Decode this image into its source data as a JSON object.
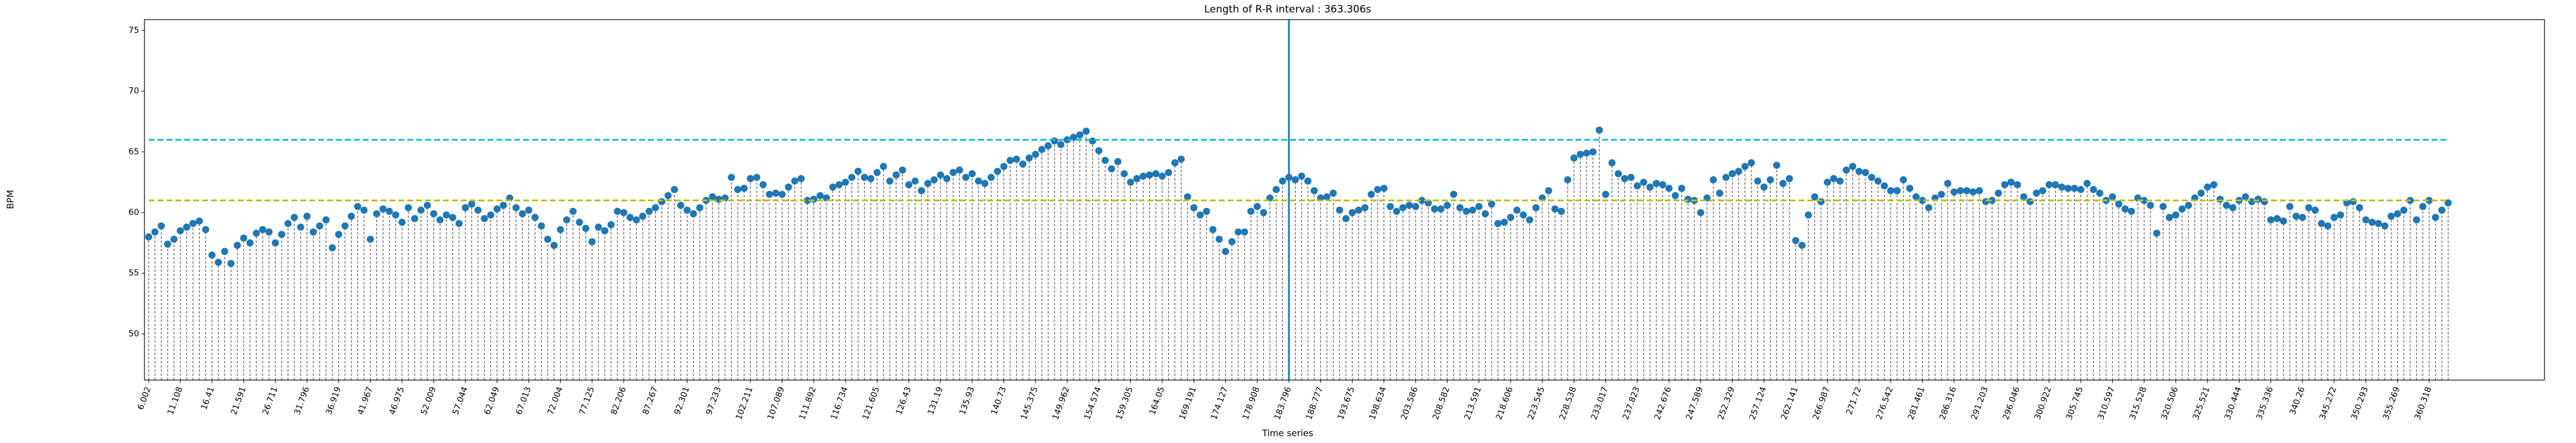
{
  "chart_data": {
    "type": "stem",
    "title": "Length of R-R interval : 363.306s",
    "xlabel": "Time series",
    "ylabel": "BPM",
    "categories": [
      "6.002",
      null,
      null,
      null,
      null,
      "11.108",
      null,
      null,
      null,
      null,
      "16.41",
      null,
      null,
      null,
      null,
      "21.591",
      null,
      null,
      null,
      null,
      "26.711",
      null,
      null,
      null,
      null,
      "31.796",
      null,
      null,
      null,
      null,
      "36.919",
      null,
      null,
      null,
      null,
      "41.967",
      null,
      null,
      null,
      null,
      "46.975",
      null,
      null,
      null,
      null,
      "52.009",
      null,
      null,
      null,
      null,
      "57.044",
      null,
      null,
      null,
      null,
      "62.049",
      null,
      null,
      null,
      null,
      "67.013",
      null,
      null,
      null,
      null,
      "72.004",
      null,
      null,
      null,
      null,
      "77.125",
      null,
      null,
      null,
      null,
      "82.206",
      null,
      null,
      null,
      null,
      "87.267",
      null,
      null,
      null,
      null,
      "92.301",
      null,
      null,
      null,
      null,
      "97.233",
      null,
      null,
      null,
      null,
      "102.211",
      null,
      null,
      null,
      null,
      "107.089",
      null,
      null,
      null,
      null,
      "111.892",
      null,
      null,
      null,
      null,
      "116.734",
      null,
      null,
      null,
      null,
      "121.605",
      null,
      null,
      null,
      null,
      "126.43",
      null,
      null,
      null,
      null,
      "131.19",
      null,
      null,
      null,
      null,
      "135.93",
      null,
      null,
      null,
      null,
      "140.73",
      null,
      null,
      null,
      null,
      "145.375",
      null,
      null,
      null,
      null,
      "149.962",
      null,
      null,
      null,
      null,
      "154.574",
      null,
      null,
      null,
      null,
      "159.305",
      null,
      null,
      null,
      null,
      "164.05",
      null,
      null,
      null,
      null,
      "169.191",
      null,
      null,
      null,
      null,
      "174.127",
      null,
      null,
      null,
      null,
      "178.908",
      null,
      null,
      null,
      null,
      "183.796",
      null,
      null,
      null,
      null,
      "188.777",
      null,
      null,
      null,
      null,
      "193.675",
      null,
      null,
      null,
      null,
      "198.634",
      null,
      null,
      null,
      null,
      "203.586",
      null,
      null,
      null,
      null,
      "208.582",
      null,
      null,
      null,
      null,
      "213.591",
      null,
      null,
      null,
      null,
      "218.606",
      null,
      null,
      null,
      null,
      "223.545",
      null,
      null,
      null,
      null,
      "228.538",
      null,
      null,
      null,
      null,
      "233.017",
      null,
      null,
      null,
      null,
      "237.823",
      null,
      null,
      null,
      null,
      "242.676",
      null,
      null,
      null,
      null,
      "247.589",
      null,
      null,
      null,
      null,
      "252.329",
      null,
      null,
      null,
      null,
      "257.124",
      null,
      null,
      null,
      null,
      "262.141",
      null,
      null,
      null,
      null,
      "266.987",
      null,
      null,
      null,
      null,
      "271.72",
      null,
      null,
      null,
      null,
      "276.542",
      null,
      null,
      null,
      null,
      "281.461",
      null,
      null,
      null,
      null,
      "286.316",
      null,
      null,
      null,
      null,
      "291.203",
      null,
      null,
      null,
      null,
      "296.046",
      null,
      null,
      null,
      null,
      "300.922",
      null,
      null,
      null,
      null,
      "305.745",
      null,
      null,
      null,
      null,
      "310.597",
      null,
      null,
      null,
      null,
      "315.528",
      null,
      null,
      null,
      null,
      "320.506",
      null,
      null,
      null,
      null,
      "325.521",
      null,
      null,
      null,
      null,
      "330.444",
      null,
      null,
      null,
      null,
      "335.336",
      null,
      null,
      null,
      null,
      "340.26",
      null,
      null,
      null,
      null,
      "345.272",
      null,
      null,
      null,
      null,
      "350.293",
      null,
      null,
      null,
      null,
      "355.269",
      null,
      null,
      null,
      null,
      "360.318",
      null,
      null,
      null
    ],
    "values": [
      58.0,
      58.4,
      58.9,
      57.4,
      57.8,
      58.5,
      58.8,
      59.1,
      59.3,
      58.6,
      56.5,
      55.9,
      56.8,
      55.8,
      57.3,
      57.9,
      57.5,
      58.3,
      58.6,
      58.4,
      57.5,
      58.2,
      59.1,
      59.6,
      58.8,
      59.7,
      58.4,
      58.9,
      59.4,
      57.1,
      58.2,
      58.9,
      59.7,
      60.5,
      60.2,
      57.8,
      59.9,
      60.3,
      60.1,
      59.8,
      59.2,
      60.4,
      59.5,
      60.2,
      60.6,
      59.9,
      59.4,
      59.8,
      59.6,
      59.1,
      60.4,
      60.7,
      60.2,
      59.5,
      59.8,
      60.3,
      60.6,
      61.2,
      60.4,
      59.9,
      60.2,
      59.6,
      58.9,
      57.8,
      57.3,
      58.6,
      59.4,
      60.1,
      59.2,
      58.7,
      57.6,
      58.8,
      58.5,
      59.0,
      60.1,
      60.0,
      59.6,
      59.4,
      59.7,
      60.1,
      60.4,
      60.9,
      61.4,
      61.9,
      60.6,
      60.2,
      59.9,
      60.4,
      61.0,
      61.3,
      61.1,
      61.2,
      62.9,
      61.9,
      62.0,
      62.8,
      62.9,
      62.3,
      61.5,
      61.6,
      61.5,
      62.1,
      62.6,
      62.8,
      61.0,
      61.1,
      61.4,
      61.2,
      62.1,
      62.3,
      62.5,
      62.9,
      63.4,
      62.9,
      62.8,
      63.3,
      63.8,
      62.6,
      63.1,
      63.5,
      62.3,
      62.6,
      61.8,
      62.4,
      62.7,
      63.1,
      62.8,
      63.3,
      63.5,
      62.9,
      63.2,
      62.6,
      62.4,
      62.9,
      63.4,
      63.8,
      64.3,
      64.4,
      64.0,
      64.5,
      64.8,
      65.2,
      65.5,
      65.9,
      65.6,
      66.0,
      66.2,
      66.4,
      66.7,
      65.9,
      65.1,
      64.3,
      63.6,
      64.2,
      63.2,
      62.5,
      62.8,
      63.0,
      63.1,
      63.2,
      63.0,
      63.3,
      64.1,
      64.4,
      61.3,
      60.4,
      59.8,
      60.1,
      58.6,
      57.8,
      56.8,
      57.6,
      58.4,
      58.4,
      60.1,
      60.5,
      60.0,
      61.2,
      61.9,
      62.6,
      62.9,
      62.7,
      63.0,
      62.6,
      61.8,
      61.2,
      61.3,
      61.6,
      60.2,
      59.5,
      60.0,
      60.2,
      60.4,
      61.5,
      61.9,
      62.0,
      60.5,
      60.1,
      60.4,
      60.6,
      60.5,
      61.0,
      60.8,
      60.3,
      60.3,
      60.6,
      61.5,
      60.4,
      60.1,
      60.2,
      60.5,
      59.9,
      60.7,
      59.1,
      59.2,
      59.6,
      60.2,
      59.8,
      59.4,
      60.4,
      61.2,
      61.8,
      60.3,
      60.1,
      62.7,
      64.5,
      64.8,
      64.9,
      65.0,
      66.8,
      61.5,
      64.1,
      63.2,
      62.8,
      62.9,
      62.2,
      62.5,
      62.1,
      62.4,
      62.3,
      62.0,
      61.4,
      62.0,
      61.1,
      61.0,
      60.0,
      61.2,
      62.7,
      61.6,
      62.9,
      63.2,
      63.4,
      63.8,
      64.1,
      62.6,
      62.1,
      62.7,
      63.9,
      62.4,
      62.8,
      57.7,
      57.3,
      59.8,
      61.3,
      60.9,
      62.5,
      62.8,
      62.6,
      63.5,
      63.8,
      63.4,
      63.3,
      62.9,
      62.6,
      62.2,
      61.8,
      61.8,
      62.7,
      62.0,
      61.3,
      61.0,
      60.4,
      61.2,
      61.5,
      62.4,
      61.7,
      61.8,
      61.8,
      61.7,
      61.8,
      60.9,
      61.0,
      61.6,
      62.3,
      62.5,
      62.3,
      61.3,
      60.9,
      61.6,
      61.8,
      62.3,
      62.3,
      62.1,
      62.0,
      62.0,
      61.9,
      62.4,
      61.9,
      61.6,
      61.0,
      61.3,
      60.7,
      60.3,
      60.1,
      61.2,
      61.0,
      60.6,
      58.3,
      60.5,
      59.6,
      59.8,
      60.3,
      60.6,
      61.2,
      61.6,
      62.1,
      62.3,
      61.1,
      60.6,
      60.4,
      61.0,
      61.3,
      60.9,
      61.1,
      60.9,
      59.4,
      59.5,
      59.3,
      60.5,
      59.7,
      59.6,
      60.4,
      60.2,
      59.1,
      58.9,
      59.6,
      59.8,
      60.8,
      60.9,
      60.4,
      59.4,
      59.2,
      59.1,
      58.9,
      59.7,
      59.9,
      60.2,
      61.0,
      59.4,
      60.5,
      61.0,
      59.6,
      60.2,
      60.8
    ],
    "color": "#1f77b4",
    "stem_color": "#555555",
    "ylim": [
      46.2,
      75.9
    ],
    "yticks": [
      50,
      55,
      60,
      65,
      70,
      75
    ],
    "hlines": [
      {
        "value": 66,
        "color": "#17becf"
      },
      {
        "value": 61,
        "color": "#bcbd22"
      }
    ],
    "vline": 180,
    "vline_color": "#1f77b4"
  }
}
